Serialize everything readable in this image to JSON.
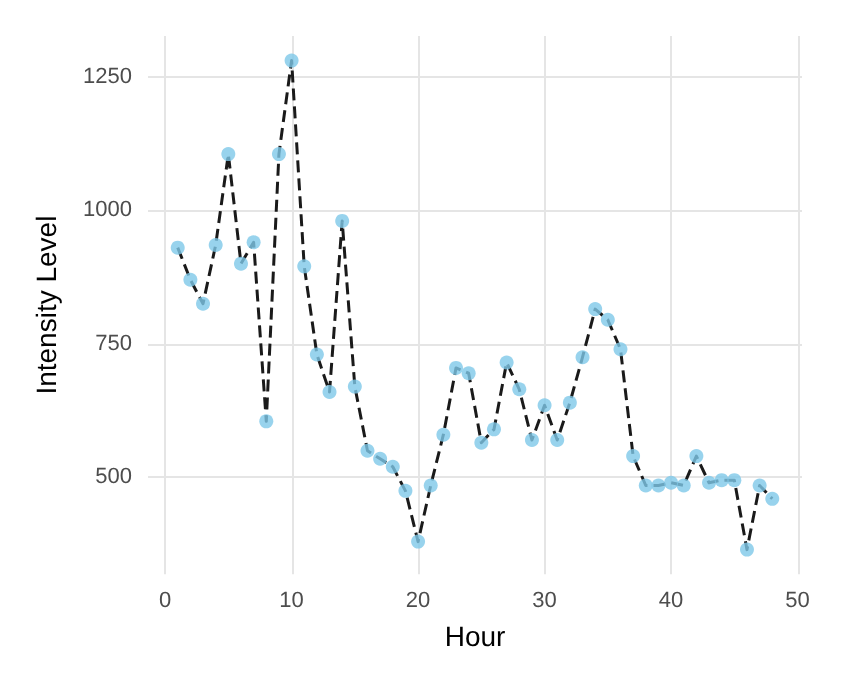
{
  "chart_data": {
    "type": "line",
    "xlabel": "Hour",
    "ylabel": "Intensity Level",
    "x": [
      1,
      2,
      3,
      4,
      5,
      6,
      7,
      8,
      9,
      10,
      11,
      12,
      13,
      14,
      15,
      16,
      17,
      18,
      19,
      20,
      21,
      22,
      23,
      24,
      25,
      26,
      27,
      28,
      29,
      30,
      31,
      32,
      33,
      34,
      35,
      36,
      37,
      38,
      39,
      40,
      41,
      42,
      43,
      44,
      45,
      46,
      47,
      48
    ],
    "series": [
      {
        "color": "#7ec8e8",
        "values": [
          930,
          870,
          825,
          935,
          1105,
          900,
          940,
          605,
          1105,
          1280,
          895,
          730,
          660,
          980,
          670,
          550,
          535,
          520,
          475,
          380,
          485,
          580,
          705,
          695,
          565,
          590,
          715,
          665,
          570,
          635,
          570,
          640,
          725,
          815,
          795,
          740,
          540,
          485,
          485,
          490,
          485,
          540,
          490,
          495,
          495,
          365,
          485,
          460
        ]
      }
    ],
    "xlim": [
      -1.35,
      50.35
    ],
    "xticks": [
      0,
      10,
      20,
      30,
      40,
      50
    ],
    "ylim": [
      319,
      1326
    ],
    "yticks": [
      500,
      750,
      1000,
      1250
    ],
    "grid": true,
    "marker": "circle",
    "line_style": "dashed"
  }
}
